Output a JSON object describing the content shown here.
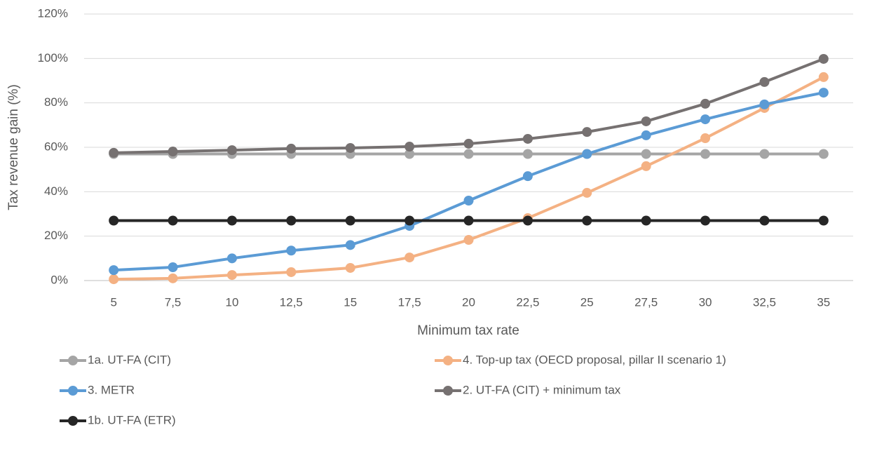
{
  "chart_data": {
    "type": "line",
    "x_label": "Minimum tax rate",
    "y_label": "Tax revenue gain (%)",
    "categories": [
      "5",
      "7,5",
      "10",
      "12,5",
      "15",
      "17,5",
      "20",
      "22,5",
      "25",
      "27,5",
      "30",
      "32,5",
      "35"
    ],
    "series": [
      {
        "name": "1a. UT-FA (CIT)",
        "color": "#a5a5a5",
        "values": [
          57,
          57,
          57,
          57,
          57,
          57,
          57,
          57,
          57,
          57,
          57,
          57,
          57
        ]
      },
      {
        "name": "4. Top-up tax (OECD proposal, pillar II scenario 1)",
        "color": "#f4b183",
        "values": [
          0.6,
          1,
          2.5,
          3.8,
          5.7,
          10.4,
          18.3,
          28.1,
          39.5,
          51.5,
          64.1,
          77.7,
          91.6
        ]
      },
      {
        "name": "3. METR",
        "color": "#5b9bd5",
        "values": [
          4.7,
          6,
          10,
          13.5,
          16,
          24.6,
          36,
          47,
          57,
          65.4,
          72.6,
          79.3,
          84.6
        ]
      },
      {
        "name": "2. UT-FA (CIT) + minimum tax",
        "color": "#767171",
        "values": [
          57.5,
          58.1,
          58.7,
          59.4,
          59.7,
          60.3,
          61.6,
          63.8,
          66.9,
          71.7,
          79.6,
          89.4,
          99.8
        ]
      },
      {
        "name": "1b. UT-FA (ETR)",
        "color": "#262626",
        "values": [
          27,
          27,
          27,
          27,
          27,
          27,
          27,
          27,
          27,
          27,
          27,
          27,
          27
        ]
      }
    ],
    "ylim": [
      0,
      120
    ],
    "yticks": [
      {
        "value": 0,
        "label": "0%"
      },
      {
        "value": 20,
        "label": "20%"
      },
      {
        "value": 40,
        "label": "40%"
      },
      {
        "value": 60,
        "label": "60%"
      },
      {
        "value": 80,
        "label": "80%"
      },
      {
        "value": 100,
        "label": "100%"
      },
      {
        "value": 120,
        "label": "120%"
      }
    ],
    "grid": true
  }
}
